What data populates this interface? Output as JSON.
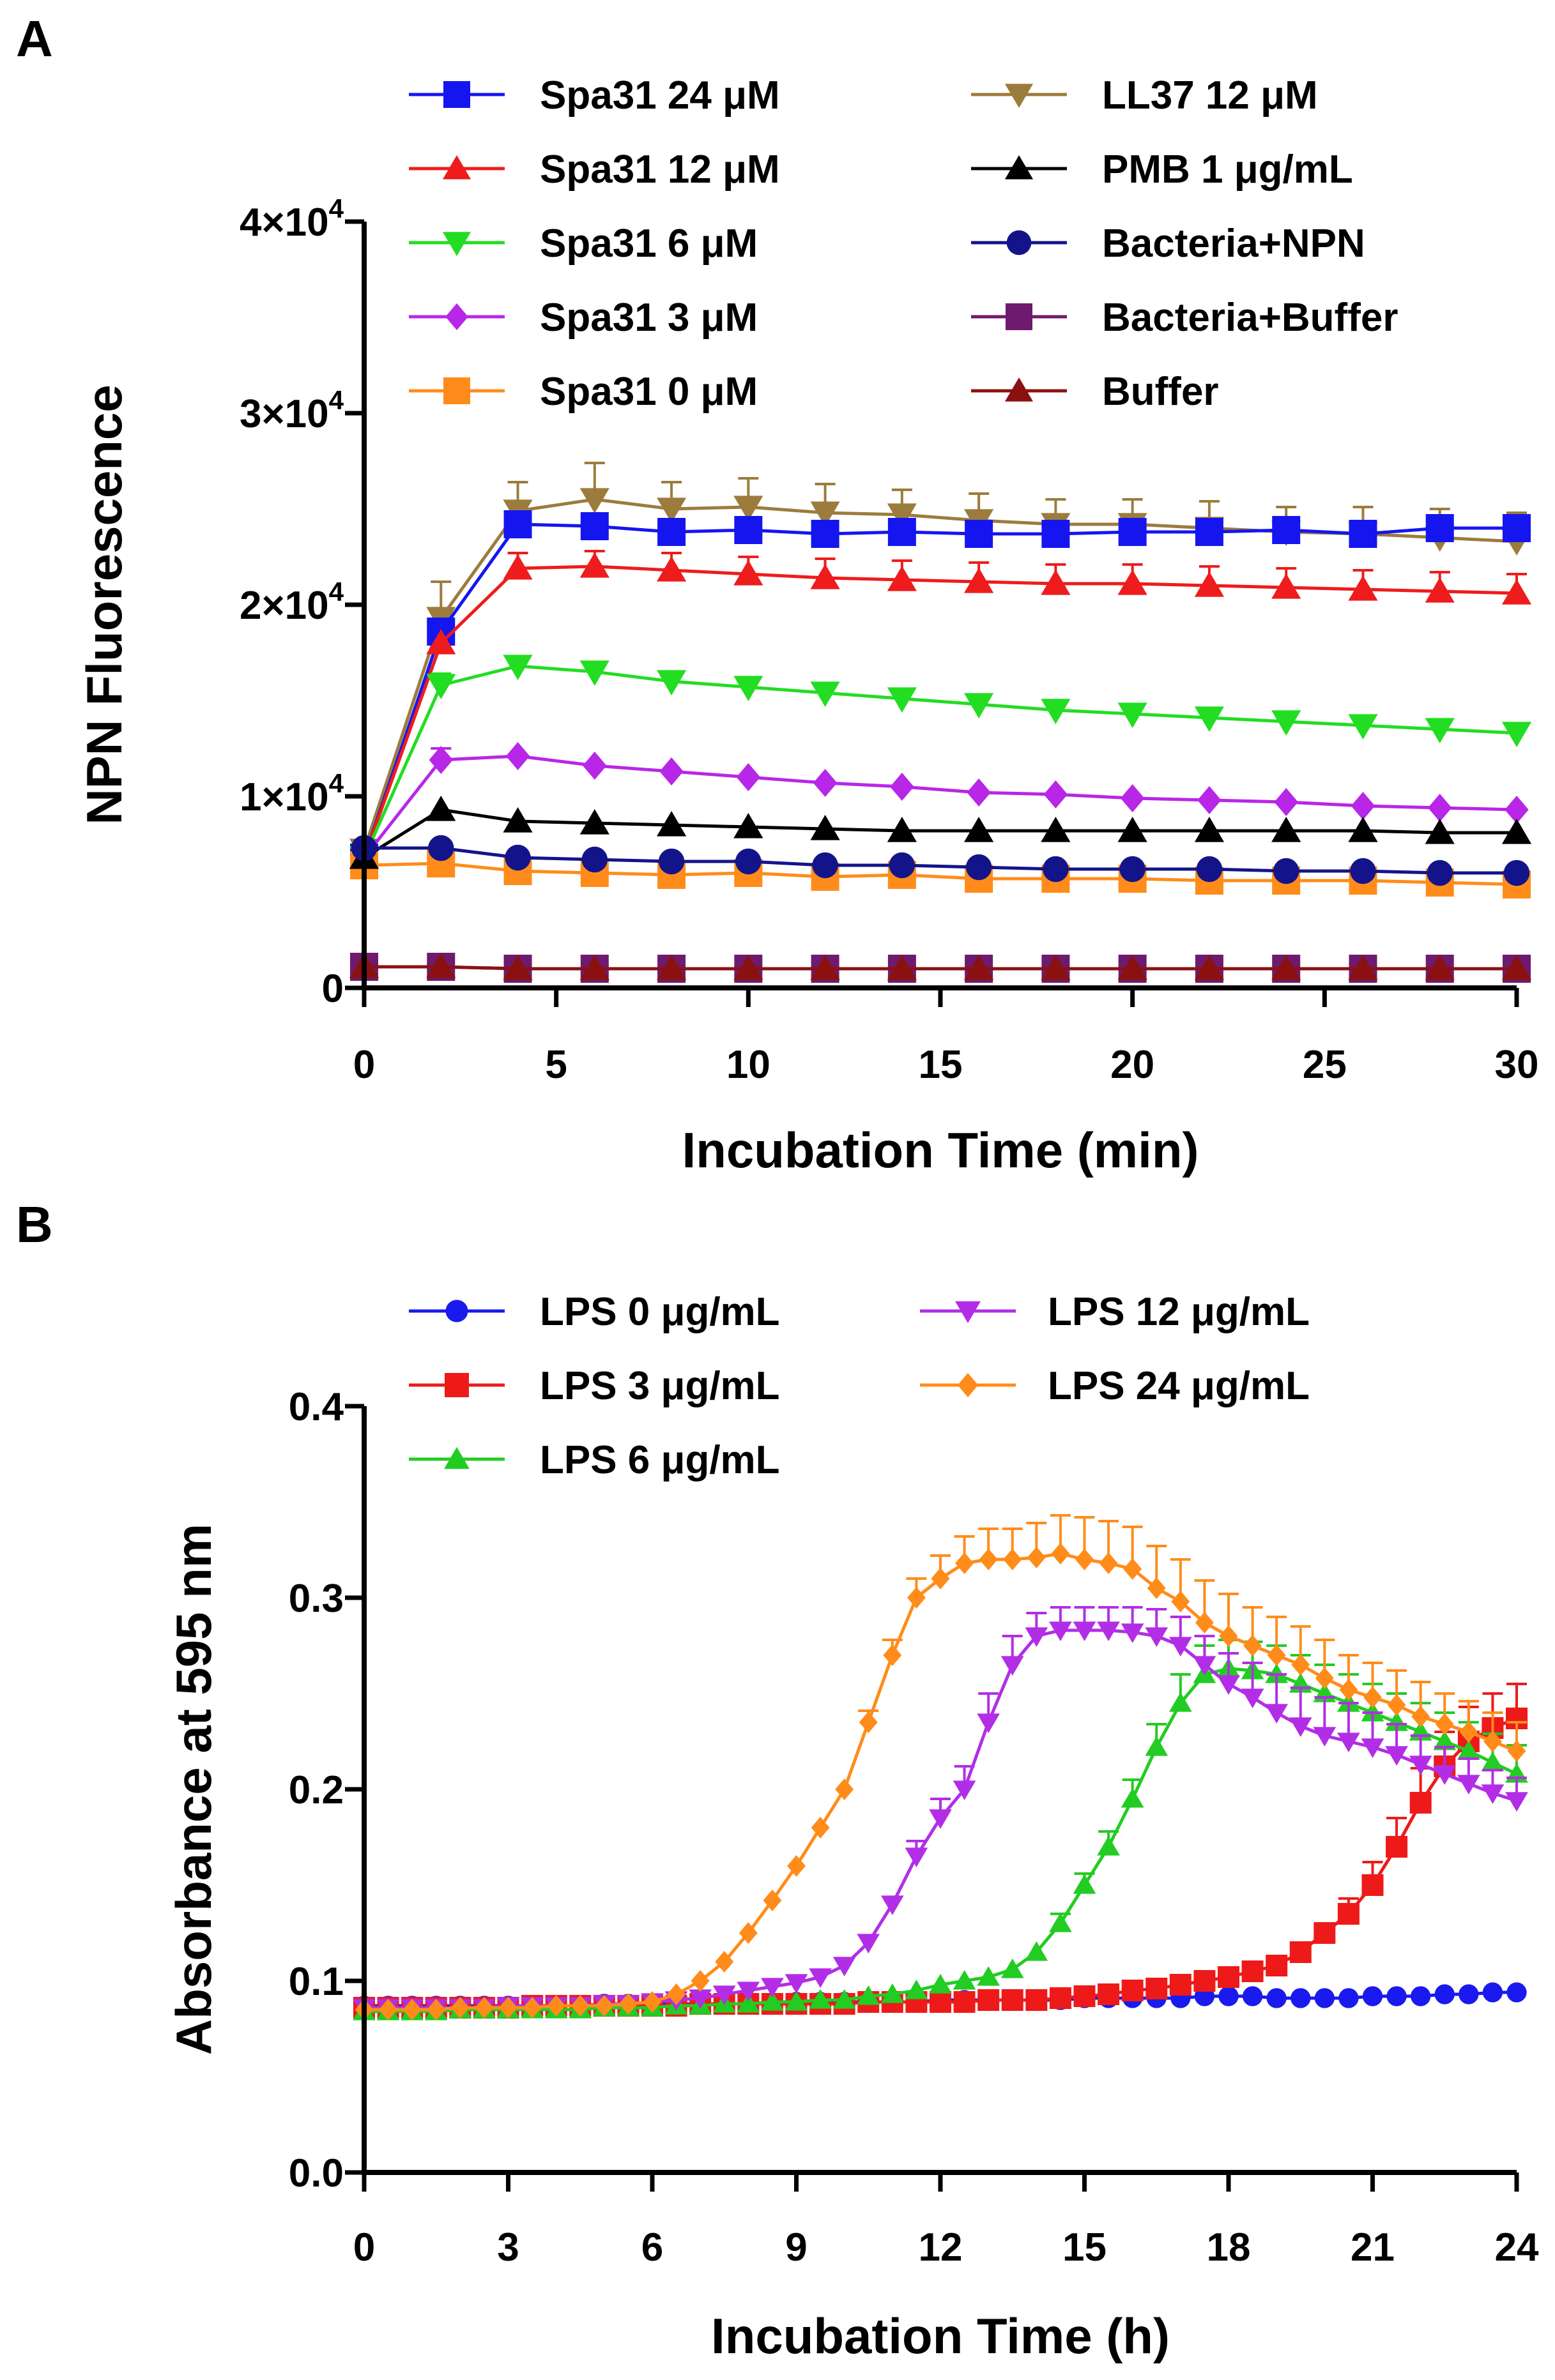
{
  "chart_data": [
    {
      "panel": "A",
      "type": "line",
      "xlabel": "Incubation Time (min)",
      "ylabel": "NPN Fluorescence",
      "xlim": [
        0,
        30
      ],
      "ylim": [
        0,
        40000
      ],
      "x_ticks": [
        0,
        5,
        10,
        15,
        20,
        25,
        30
      ],
      "x_tick_labels": [
        "0",
        "5",
        "10",
        "15",
        "20",
        "25",
        "30"
      ],
      "y_ticks": [
        0,
        10000,
        20000,
        30000,
        40000
      ],
      "y_tick_labels": [
        {
          "mantissa": "0",
          "exp": ""
        },
        {
          "mantissa": "1×10",
          "exp": "4"
        },
        {
          "mantissa": "2×10",
          "exp": "4"
        },
        {
          "mantissa": "3×10",
          "exp": "4"
        },
        {
          "mantissa": "4×10",
          "exp": "4"
        }
      ],
      "x": [
        0,
        2,
        4,
        6,
        8,
        10,
        12,
        14,
        16,
        18,
        20,
        22,
        24,
        26,
        28,
        30
      ],
      "legend_columns": 2,
      "series": [
        {
          "name": "Spa31 24 μM",
          "color": "#1515f0",
          "marker": "square",
          "values": [
            6800,
            18600,
            24200,
            24100,
            23800,
            23900,
            23700,
            23800,
            23700,
            23700,
            23800,
            23800,
            23900,
            23700,
            24000,
            24000
          ],
          "errors": [
            0,
            0,
            0,
            0,
            0,
            0,
            0,
            0,
            0,
            0,
            0,
            0,
            0,
            0,
            0,
            0
          ]
        },
        {
          "name": "Spa31 12 μM",
          "color": "#ee1c1c",
          "marker": "triangle-up",
          "values": [
            6800,
            18000,
            21900,
            22000,
            21800,
            21600,
            21400,
            21300,
            21200,
            21100,
            21100,
            21000,
            20900,
            20800,
            20700,
            20600
          ],
          "errors": [
            0,
            0,
            800,
            800,
            900,
            900,
            1000,
            1000,
            1000,
            1000,
            1000,
            1000,
            1000,
            1000,
            1000,
            1000
          ]
        },
        {
          "name": "Spa31 6 μM",
          "color": "#22dd22",
          "marker": "triangle-down",
          "values": [
            6800,
            15800,
            16800,
            16500,
            16000,
            15700,
            15400,
            15100,
            14800,
            14500,
            14300,
            14100,
            13900,
            13700,
            13500,
            13300
          ],
          "errors": [
            0,
            600,
            0,
            0,
            0,
            0,
            0,
            0,
            0,
            0,
            0,
            0,
            0,
            0,
            0,
            0
          ]
        },
        {
          "name": "Spa31 3 μM",
          "color": "#b826e8",
          "marker": "diamond",
          "values": [
            6800,
            11900,
            12100,
            11600,
            11300,
            11000,
            10700,
            10500,
            10200,
            10100,
            9900,
            9800,
            9700,
            9500,
            9400,
            9300
          ],
          "errors": [
            0,
            600,
            0,
            0,
            0,
            0,
            0,
            0,
            0,
            0,
            0,
            0,
            0,
            0,
            0,
            0
          ]
        },
        {
          "name": "Spa31 0 μM",
          "color": "#ff8c1a",
          "marker": "square",
          "values": [
            6400,
            6500,
            6100,
            6000,
            5900,
            6000,
            5800,
            5900,
            5700,
            5700,
            5700,
            5600,
            5600,
            5600,
            5500,
            5400
          ],
          "errors": [
            0,
            0,
            0,
            0,
            0,
            0,
            0,
            0,
            0,
            0,
            0,
            0,
            0,
            0,
            0,
            0
          ]
        },
        {
          "name": "LL37 12 μM",
          "color": "#9c7c3c",
          "marker": "triangle-down",
          "values": [
            7200,
            19300,
            24900,
            25500,
            25000,
            25100,
            24800,
            24700,
            24400,
            24200,
            24200,
            24000,
            23800,
            23700,
            23500,
            23300
          ],
          "errors": [
            0,
            1900,
            1500,
            1900,
            1400,
            1500,
            1500,
            1300,
            1400,
            1300,
            1300,
            1400,
            1300,
            1400,
            1500,
            1500
          ]
        },
        {
          "name": "PMB 1 μg/mL",
          "color": "#000000",
          "marker": "triangle-up",
          "values": [
            6800,
            9300,
            8700,
            8600,
            8500,
            8400,
            8300,
            8200,
            8200,
            8200,
            8200,
            8200,
            8200,
            8200,
            8100,
            8100
          ],
          "errors": [
            0,
            0,
            0,
            0,
            0,
            0,
            0,
            0,
            0,
            0,
            0,
            0,
            0,
            0,
            0,
            0
          ]
        },
        {
          "name": "Bacteria+NPN",
          "color": "#14148a",
          "marker": "circle",
          "values": [
            7300,
            7300,
            6800,
            6700,
            6600,
            6600,
            6400,
            6400,
            6300,
            6200,
            6200,
            6200,
            6100,
            6100,
            6000,
            6000
          ],
          "errors": [
            0,
            0,
            0,
            0,
            0,
            0,
            0,
            0,
            0,
            0,
            0,
            0,
            0,
            0,
            0,
            0
          ]
        },
        {
          "name": "Bacteria+Buffer",
          "color": "#6e1a6e",
          "marker": "square",
          "values": [
            1100,
            1100,
            1000,
            1000,
            1000,
            1000,
            1000,
            1000,
            1000,
            1000,
            1000,
            1000,
            1000,
            1000,
            1000,
            1000
          ],
          "errors": [
            0,
            0,
            0,
            0,
            0,
            0,
            0,
            0,
            0,
            0,
            0,
            0,
            0,
            0,
            0,
            0
          ]
        },
        {
          "name": "Buffer",
          "color": "#8b1111",
          "marker": "triangle-up",
          "values": [
            1100,
            1100,
            1000,
            1000,
            1000,
            1000,
            1000,
            1000,
            1000,
            1000,
            1000,
            1000,
            1000,
            1000,
            1000,
            1000
          ],
          "errors": [
            0,
            0,
            0,
            0,
            0,
            0,
            0,
            0,
            0,
            0,
            0,
            0,
            0,
            0,
            0,
            0
          ]
        }
      ]
    },
    {
      "panel": "B",
      "type": "line",
      "xlabel": "Incubation Time (h)",
      "ylabel": "Absorbance at 595 nm",
      "xlim": [
        0,
        24
      ],
      "ylim": [
        0,
        0.4
      ],
      "x_ticks": [
        0,
        3,
        6,
        9,
        12,
        15,
        18,
        21,
        24
      ],
      "x_tick_labels": [
        "0",
        "3",
        "6",
        "9",
        "12",
        "15",
        "18",
        "21",
        "24"
      ],
      "y_ticks": [
        0,
        0.1,
        0.2,
        0.3,
        0.4
      ],
      "y_tick_labels": [
        {
          "mantissa": "0.0",
          "exp": ""
        },
        {
          "mantissa": "0.1",
          "exp": ""
        },
        {
          "mantissa": "0.2",
          "exp": ""
        },
        {
          "mantissa": "0.3",
          "exp": ""
        },
        {
          "mantissa": "0.4",
          "exp": ""
        }
      ],
      "x_start": 0,
      "x_step": 0.5,
      "legend_columns": 2,
      "series": [
        {
          "name": "LPS 0 μg/mL",
          "color": "#1a1aee",
          "marker": "circle",
          "values": [
            0.087,
            0.087,
            0.087,
            0.087,
            0.087,
            0.087,
            0.087,
            0.087,
            0.087,
            0.087,
            0.088,
            0.088,
            0.088,
            0.088,
            0.088,
            0.088,
            0.088,
            0.088,
            0.089,
            0.089,
            0.089,
            0.089,
            0.089,
            0.089,
            0.09,
            0.09,
            0.09,
            0.09,
            0.09,
            0.09,
            0.091,
            0.091,
            0.091,
            0.091,
            0.091,
            0.092,
            0.092,
            0.092,
            0.091,
            0.091,
            0.091,
            0.091,
            0.092,
            0.092,
            0.092,
            0.093,
            0.093,
            0.094,
            0.094
          ],
          "errors": []
        },
        {
          "name": "LPS 3 μg/mL",
          "color": "#ee1a1a",
          "marker": "square",
          "values": [
            0.086,
            0.086,
            0.086,
            0.086,
            0.086,
            0.086,
            0.086,
            0.087,
            0.087,
            0.087,
            0.087,
            0.087,
            0.087,
            0.087,
            0.088,
            0.088,
            0.088,
            0.088,
            0.088,
            0.088,
            0.088,
            0.089,
            0.089,
            0.089,
            0.089,
            0.089,
            0.09,
            0.09,
            0.09,
            0.091,
            0.092,
            0.093,
            0.095,
            0.096,
            0.098,
            0.1,
            0.102,
            0.105,
            0.108,
            0.115,
            0.125,
            0.135,
            0.15,
            0.17,
            0.193,
            0.212,
            0.225,
            0.232,
            0.237
          ],
          "errors": [
            0,
            0,
            0,
            0,
            0,
            0,
            0,
            0,
            0,
            0,
            0,
            0,
            0,
            0,
            0,
            0,
            0,
            0,
            0,
            0,
            0,
            0,
            0,
            0,
            0,
            0,
            0,
            0,
            0,
            0,
            0,
            0,
            0,
            0,
            0,
            0,
            0,
            0,
            0,
            0,
            0.005,
            0.008,
            0.012,
            0.015,
            0.018,
            0.018,
            0.018,
            0.018,
            0.018
          ]
        },
        {
          "name": "LPS 6 μg/mL",
          "color": "#22cc22",
          "marker": "triangle-up",
          "values": [
            0.084,
            0.084,
            0.084,
            0.084,
            0.085,
            0.085,
            0.085,
            0.085,
            0.085,
            0.085,
            0.086,
            0.086,
            0.086,
            0.087,
            0.087,
            0.088,
            0.088,
            0.089,
            0.089,
            0.09,
            0.09,
            0.092,
            0.093,
            0.095,
            0.098,
            0.1,
            0.102,
            0.106,
            0.115,
            0.13,
            0.15,
            0.17,
            0.195,
            0.222,
            0.245,
            0.26,
            0.263,
            0.262,
            0.26,
            0.255,
            0.25,
            0.245,
            0.24,
            0.235,
            0.23,
            0.225,
            0.22,
            0.214,
            0.208
          ],
          "errors": [
            0,
            0,
            0,
            0,
            0,
            0,
            0,
            0,
            0,
            0,
            0,
            0,
            0,
            0,
            0,
            0,
            0,
            0,
            0,
            0,
            0,
            0,
            0,
            0,
            0,
            0,
            0,
            0,
            0,
            0.005,
            0.006,
            0.008,
            0.01,
            0.012,
            0.015,
            0.015,
            0.015,
            0.015,
            0.015,
            0.015,
            0.015,
            0.015,
            0.015,
            0.015,
            0.015,
            0.015,
            0.015,
            0.015,
            0.015
          ]
        },
        {
          "name": "LPS 12 μg/mL",
          "color": "#b22ee6",
          "marker": "triangle-down",
          "values": [
            0.086,
            0.086,
            0.086,
            0.086,
            0.086,
            0.086,
            0.087,
            0.087,
            0.087,
            0.087,
            0.088,
            0.088,
            0.089,
            0.09,
            0.091,
            0.093,
            0.095,
            0.097,
            0.099,
            0.102,
            0.108,
            0.12,
            0.14,
            0.165,
            0.185,
            0.2,
            0.235,
            0.265,
            0.28,
            0.283,
            0.283,
            0.283,
            0.282,
            0.28,
            0.275,
            0.265,
            0.255,
            0.248,
            0.24,
            0.233,
            0.228,
            0.225,
            0.222,
            0.218,
            0.213,
            0.208,
            0.203,
            0.198,
            0.194
          ],
          "errors": [
            0,
            0,
            0,
            0,
            0,
            0,
            0,
            0,
            0,
            0,
            0,
            0,
            0,
            0,
            0,
            0,
            0,
            0,
            0,
            0,
            0,
            0,
            0,
            0.008,
            0.01,
            0.012,
            0.015,
            0.015,
            0.012,
            0.012,
            0.012,
            0.012,
            0.013,
            0.014,
            0.015,
            0.015,
            0.016,
            0.018,
            0.02,
            0.02,
            0.02,
            0.02,
            0.018,
            0.016,
            0.015,
            0.014,
            0.013,
            0.012,
            0.012
          ]
        },
        {
          "name": "LPS 24 μg/mL",
          "color": "#ff8c1a",
          "marker": "diamond",
          "values": [
            0.085,
            0.085,
            0.085,
            0.085,
            0.086,
            0.086,
            0.086,
            0.086,
            0.087,
            0.087,
            0.087,
            0.088,
            0.089,
            0.093,
            0.1,
            0.11,
            0.125,
            0.142,
            0.16,
            0.18,
            0.2,
            0.235,
            0.27,
            0.3,
            0.31,
            0.318,
            0.32,
            0.32,
            0.321,
            0.323,
            0.32,
            0.318,
            0.315,
            0.305,
            0.298,
            0.287,
            0.28,
            0.275,
            0.27,
            0.265,
            0.258,
            0.252,
            0.248,
            0.244,
            0.238,
            0.234,
            0.23,
            0.225,
            0.22
          ],
          "errors": [
            0,
            0,
            0,
            0,
            0,
            0,
            0,
            0,
            0,
            0,
            0,
            0,
            0,
            0,
            0,
            0,
            0,
            0,
            0,
            0,
            0,
            0.006,
            0.008,
            0.01,
            0.012,
            0.014,
            0.016,
            0.016,
            0.018,
            0.02,
            0.022,
            0.022,
            0.022,
            0.022,
            0.022,
            0.022,
            0.022,
            0.02,
            0.02,
            0.02,
            0.02,
            0.018,
            0.018,
            0.018,
            0.018,
            0.016,
            0.016,
            0.015,
            0.015
          ]
        }
      ]
    }
  ]
}
